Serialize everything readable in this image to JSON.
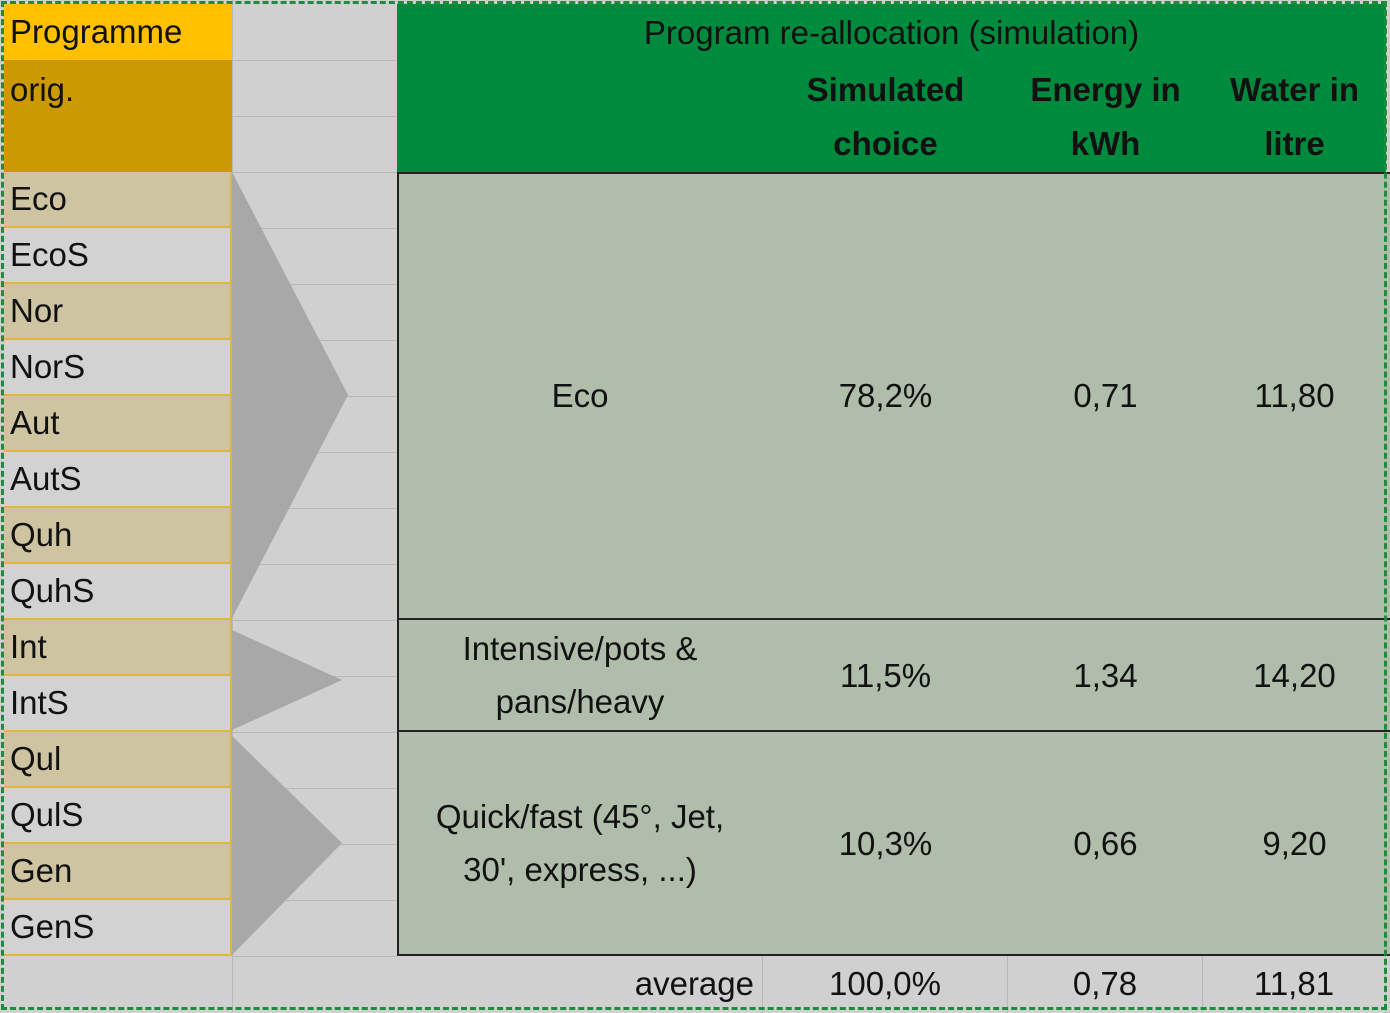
{
  "header": {
    "left_title": "Programme",
    "left_subtitle": "orig.",
    "title": "Program re-allocation (simulation)",
    "columns": [
      "Simulated choice",
      "Energy in kWh",
      "Water in litre"
    ]
  },
  "programmes": [
    "Eco",
    "EcoS",
    "Nor",
    "NorS",
    "Aut",
    "AutS",
    "Quh",
    "QuhS",
    "Int",
    "IntS",
    "Qul",
    "QulS",
    "Gen",
    "GenS"
  ],
  "groups": [
    {
      "label": "Eco",
      "choice": "78,2%",
      "energy": "0,71",
      "water": "11,80"
    },
    {
      "label": "Intensive/pots & pans/heavy",
      "choice": "11,5%",
      "energy": "1,34",
      "water": "14,20"
    },
    {
      "label": "Quick/fast (45°, Jet, 30', express, ...)",
      "choice": "10,3%",
      "energy": "0,66",
      "water": "9,20"
    }
  ],
  "average": {
    "label": "average",
    "choice": "100,0%",
    "energy": "0,78",
    "water": "11,81"
  }
}
